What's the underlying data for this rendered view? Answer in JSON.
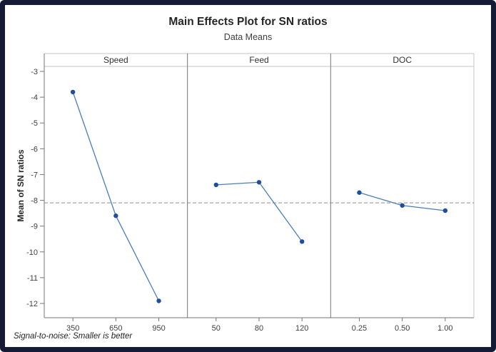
{
  "title": "Main Effects Plot for SN ratios",
  "subtitle": "Data Means",
  "footer_note": "Signal-to-noise: Smaller is better",
  "colors": {
    "frame": "#151a35",
    "line": "#4a7ebb",
    "marker": "#1f4e9c",
    "ref_line": "#8c8c8c",
    "panel_border": "#c6c6c6",
    "axis": "#767676",
    "tick_text": "#404040",
    "panel_label_text": "#333333"
  },
  "chart_data": {
    "type": "line",
    "title": "Main Effects Plot for SN ratios",
    "subtitle": "Data Means",
    "ylabel": "Mean of SN ratios",
    "yticks": [
      -3,
      -4,
      -5,
      -6,
      -7,
      -8,
      -9,
      -10,
      -11,
      -12
    ],
    "ylim": [
      -12.6,
      -2.3
    ],
    "grid": false,
    "legend": "none",
    "reference_line_mean": -8.1,
    "panels": [
      {
        "label": "Speed",
        "categories": [
          "350",
          "650",
          "950"
        ],
        "values": [
          -3.8,
          -8.6,
          -11.9
        ]
      },
      {
        "label": "Feed",
        "categories": [
          "50",
          "80",
          "120"
        ],
        "values": [
          -7.4,
          -7.3,
          -9.6
        ]
      },
      {
        "label": "DOC",
        "categories": [
          "0.25",
          "0.50",
          "1.00"
        ],
        "values": [
          -7.7,
          -8.2,
          -8.4
        ]
      }
    ],
    "footnote": "Signal-to-noise: Smaller is better"
  }
}
